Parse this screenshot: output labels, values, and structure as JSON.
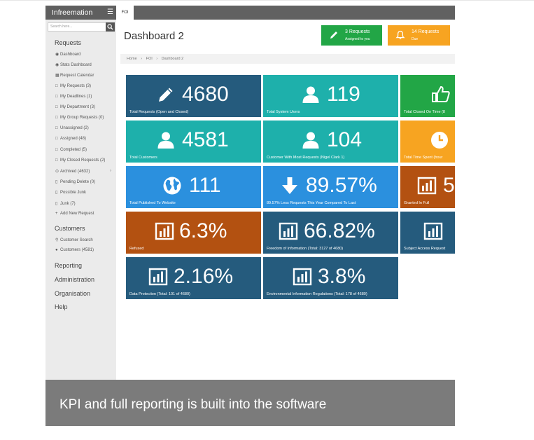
{
  "app": {
    "title": "Infreemation",
    "tab": "FOI",
    "search_placeholder": "Search here..."
  },
  "colors": {
    "navy": "#255b7d",
    "teal": "#1eb0ab",
    "green": "#22a646",
    "orange": "#f7a421",
    "blue": "#2b90de",
    "rust": "#b35111"
  },
  "sidebar": {
    "requests_heading": "Requests",
    "items": [
      {
        "label": "Dashboard",
        "icon": "dashboard-icon"
      },
      {
        "label": "Stats Dashboard",
        "icon": "dashboard-icon"
      },
      {
        "label": "Request Calendar",
        "icon": "calendar-icon"
      },
      {
        "label": "My Requests (3)",
        "icon": "folder-icon"
      },
      {
        "label": "My Deadlines (1)",
        "icon": "folder-icon"
      },
      {
        "label": "My Department (3)",
        "icon": "folder-icon"
      },
      {
        "label": "My Group Requests (0)",
        "icon": "folder-icon"
      },
      {
        "label": "Unassigned (2)",
        "icon": "folder-icon"
      },
      {
        "label": "Assigned (48)",
        "icon": "folder-icon"
      },
      {
        "label": "Completed (5)",
        "icon": "folder-icon"
      },
      {
        "label": "My Closed Requests (2)",
        "icon": "folder-icon"
      },
      {
        "label": "Archived (4632)",
        "icon": "archive-icon"
      },
      {
        "label": "Pending Delete (0)",
        "icon": "trash-icon"
      },
      {
        "label": "Possible Junk",
        "icon": "trash-icon"
      },
      {
        "label": "Junk (7)",
        "icon": "trash-icon"
      },
      {
        "label": "Add New Request",
        "icon": "plus-icon"
      }
    ],
    "customers_heading": "Customers",
    "customer_items": [
      {
        "label": "Customer Search",
        "icon": "search-icon"
      },
      {
        "label": "Customers (4581)",
        "icon": "user-icon"
      }
    ],
    "sections": [
      "Reporting",
      "Administration",
      "Organisation",
      "Help"
    ]
  },
  "header": {
    "title": "Dashboard 2",
    "green_button": {
      "line1": "3 Requests",
      "line2": "Assigned to you"
    },
    "orange_button": {
      "line1": "14 Requests",
      "line2": "Due"
    }
  },
  "breadcrumb": {
    "home": "Home",
    "sep": "›",
    "section": "FOI",
    "page": "Dashboard 2"
  },
  "tiles": [
    {
      "value": "4680",
      "label": "Total Requests (Open and Closed)",
      "icon": "pencil-icon",
      "color": "#255b7d"
    },
    {
      "value": "119",
      "label": "Total System Users",
      "icon": "user-icon",
      "color": "#1eb0ab"
    },
    {
      "value": "",
      "label": "Total Closed On Time (8",
      "icon": "thumbs-up-icon",
      "color": "#22a646"
    },
    {
      "value": "4581",
      "label": "Total Customers",
      "icon": "user-icon",
      "color": "#1eb0ab"
    },
    {
      "value": "104",
      "label": "Customer With Most Requests (Nigel Clark 1)",
      "icon": "user-icon",
      "color": "#1eb0ab"
    },
    {
      "value": "",
      "label": "Total Time Spent (hour",
      "icon": "clock-icon",
      "color": "#f7a421"
    },
    {
      "value": "111",
      "label": "Total Published To Website",
      "icon": "globe-icon",
      "color": "#2b90de"
    },
    {
      "value": "89.57%",
      "label": "89.57% Less Requests This Year Compared To Last",
      "icon": "arrow-down-icon",
      "color": "#2b90de"
    },
    {
      "value": "5",
      "label": "Granted In Full",
      "icon": "bar-chart-icon",
      "color": "#b35111"
    },
    {
      "value": "6.3%",
      "label": "Refused",
      "icon": "bar-chart-icon",
      "color": "#b35111"
    },
    {
      "value": "66.82%",
      "label": "Freedom of Information (Total: 3127 of 4680)",
      "icon": "bar-chart-icon",
      "color": "#255b7d"
    },
    {
      "value": "",
      "label": "Subject Access Request",
      "icon": "bar-chart-icon",
      "color": "#255b7d"
    },
    {
      "value": "2.16%",
      "label": "Data Protection (Total: 101 of 4680)",
      "icon": "bar-chart-icon",
      "color": "#255b7d"
    },
    {
      "value": "3.8%",
      "label": "Environmental Information Regulations (Total: 178 of 4680)",
      "icon": "bar-chart-icon",
      "color": "#255b7d"
    }
  ],
  "caption": "KPI and full reporting is built into the software"
}
